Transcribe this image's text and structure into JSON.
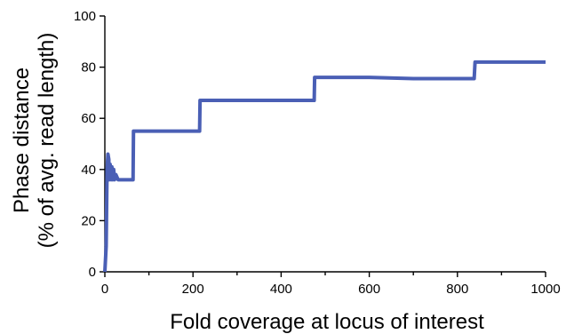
{
  "chart_data": {
    "type": "line",
    "title": "",
    "xlabel": "Fold coverage at locus of interest",
    "ylabel_lines": [
      "Phase distance",
      "(% of avg. read length)"
    ],
    "xlim": [
      0,
      1000
    ],
    "ylim": [
      0,
      100
    ],
    "x_ticks": [
      0,
      200,
      400,
      600,
      800,
      1000
    ],
    "x_minor_ticks": [
      100,
      300,
      500,
      700,
      900
    ],
    "y_ticks": [
      0,
      20,
      40,
      60,
      80,
      100
    ],
    "grid": false,
    "series": [
      {
        "color": "#4a5fb5",
        "x": [
          0,
          3,
          5,
          7,
          9,
          10,
          12,
          14,
          16,
          18,
          20,
          22,
          25,
          30,
          40,
          50,
          60,
          64,
          65,
          70,
          100,
          150,
          200,
          215,
          216,
          230,
          300,
          400,
          470,
          475,
          476,
          500,
          600,
          700,
          800,
          838,
          840,
          900,
          1000
        ],
        "y": [
          0,
          10,
          40,
          46,
          44,
          36,
          42,
          36,
          41,
          36,
          40,
          36,
          38,
          36,
          36,
          36,
          36,
          36,
          55,
          55,
          55,
          55,
          55,
          55,
          67,
          67,
          67,
          67,
          67,
          67,
          76,
          76,
          76,
          75.5,
          75.5,
          75.5,
          82,
          82,
          82
        ]
      }
    ]
  }
}
